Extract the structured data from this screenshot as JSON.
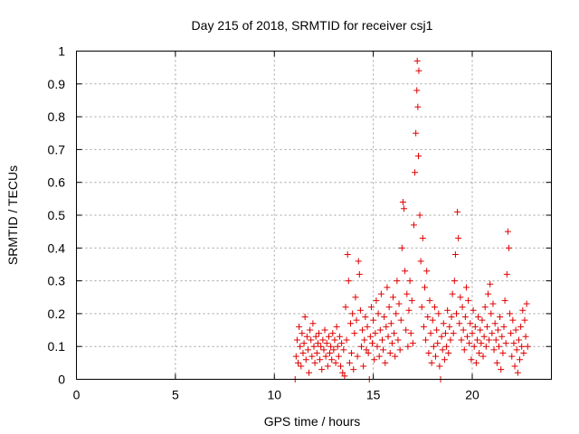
{
  "chart_data": {
    "type": "scatter",
    "title": "Day 215 of 2018, SRMTID for receiver csj1",
    "xlabel": "GPS time / hours",
    "ylabel": "SRMTID / TECUs",
    "xlim": [
      0,
      24
    ],
    "ylim": [
      0,
      1
    ],
    "x_ticks": [
      "0",
      "5",
      "10",
      "15",
      "20"
    ],
    "y_ticks": [
      "0",
      "0.1",
      "0.2",
      "0.3",
      "0.4",
      "0.5",
      "0.6",
      "0.7",
      "0.8",
      "0.9",
      "1"
    ],
    "grid": true,
    "marker": "+",
    "color": "#e00000",
    "series": [
      {
        "name": "csj1",
        "points": [
          [
            11.05,
            0.0
          ],
          [
            11.1,
            0.07
          ],
          [
            11.15,
            0.12
          ],
          [
            11.2,
            0.05
          ],
          [
            11.25,
            0.16
          ],
          [
            11.3,
            0.1
          ],
          [
            11.35,
            0.04
          ],
          [
            11.4,
            0.14
          ],
          [
            11.45,
            0.08
          ],
          [
            11.5,
            0.11
          ],
          [
            11.55,
            0.19
          ],
          [
            11.6,
            0.06
          ],
          [
            11.65,
            0.13
          ],
          [
            11.7,
            0.09
          ],
          [
            11.75,
            0.02
          ],
          [
            11.8,
            0.15
          ],
          [
            11.85,
            0.12
          ],
          [
            11.9,
            0.07
          ],
          [
            11.95,
            0.17
          ],
          [
            12.0,
            0.1
          ],
          [
            12.05,
            0.05
          ],
          [
            12.1,
            0.13
          ],
          [
            12.15,
            0.08
          ],
          [
            12.2,
            0.11
          ],
          [
            12.25,
            0.14
          ],
          [
            12.3,
            0.06
          ],
          [
            12.35,
            0.1
          ],
          [
            12.4,
            0.03
          ],
          [
            12.45,
            0.12
          ],
          [
            12.5,
            0.09
          ],
          [
            12.55,
            0.15
          ],
          [
            12.6,
            0.07
          ],
          [
            12.65,
            0.11
          ],
          [
            12.7,
            0.04
          ],
          [
            12.75,
            0.13
          ],
          [
            12.8,
            0.08
          ],
          [
            12.85,
            0.1
          ],
          [
            12.9,
            0.06
          ],
          [
            12.95,
            0.14
          ],
          [
            13.0,
            0.09
          ],
          [
            13.05,
            0.12
          ],
          [
            13.1,
            0.05
          ],
          [
            13.15,
            0.16
          ],
          [
            13.2,
            0.1
          ],
          [
            13.25,
            0.07
          ],
          [
            13.3,
            0.13
          ],
          [
            13.35,
            0.04
          ],
          [
            13.4,
            0.11
          ],
          [
            13.45,
            0.02
          ],
          [
            13.5,
            0.09
          ],
          [
            13.55,
            0.01
          ],
          [
            13.6,
            0.22
          ],
          [
            13.65,
            0.12
          ],
          [
            13.7,
            0.38
          ],
          [
            13.75,
            0.3
          ],
          [
            13.8,
            0.05
          ],
          [
            13.85,
            0.17
          ],
          [
            13.9,
            0.08
          ],
          [
            13.95,
            0.2
          ],
          [
            14.0,
            0.03
          ],
          [
            14.05,
            0.14
          ],
          [
            14.1,
            0.25
          ],
          [
            14.15,
            0.18
          ],
          [
            14.2,
            0.07
          ],
          [
            14.25,
            0.36
          ],
          [
            14.3,
            0.32
          ],
          [
            14.35,
            0.21
          ],
          [
            14.4,
            0.1
          ],
          [
            14.45,
            0.15
          ],
          [
            14.5,
            0.04
          ],
          [
            14.55,
            0.12
          ],
          [
            14.6,
            0.19
          ],
          [
            14.65,
            0.09
          ],
          [
            14.7,
            0.16
          ],
          [
            14.75,
            0.08
          ],
          [
            14.8,
            0.0
          ],
          [
            14.85,
            0.13
          ],
          [
            14.9,
            0.22
          ],
          [
            14.95,
            0.11
          ],
          [
            15.0,
            0.18
          ],
          [
            15.05,
            0.06
          ],
          [
            15.1,
            0.14
          ],
          [
            15.15,
            0.24
          ],
          [
            15.2,
            0.1
          ],
          [
            15.25,
            0.2
          ],
          [
            15.3,
            0.07
          ],
          [
            15.35,
            0.15
          ],
          [
            15.4,
            0.26
          ],
          [
            15.45,
            0.12
          ],
          [
            15.5,
            0.09
          ],
          [
            15.55,
            0.19
          ],
          [
            15.6,
            0.05
          ],
          [
            15.65,
            0.16
          ],
          [
            15.7,
            0.28
          ],
          [
            15.75,
            0.13
          ],
          [
            15.8,
            0.22
          ],
          [
            15.85,
            0.08
          ],
          [
            15.9,
            0.17
          ],
          [
            15.95,
            0.11
          ],
          [
            16.0,
            0.25
          ],
          [
            16.05,
            0.14
          ],
          [
            16.1,
            0.07
          ],
          [
            16.15,
            0.2
          ],
          [
            16.2,
            0.3
          ],
          [
            16.25,
            0.12
          ],
          [
            16.3,
            0.23
          ],
          [
            16.35,
            0.09
          ],
          [
            16.4,
            0.18
          ],
          [
            16.45,
            0.4
          ],
          [
            16.5,
            0.54
          ],
          [
            16.55,
            0.52
          ],
          [
            16.6,
            0.33
          ],
          [
            16.65,
            0.15
          ],
          [
            16.7,
            0.26
          ],
          [
            16.75,
            0.1
          ],
          [
            16.8,
            0.21
          ],
          [
            16.85,
            0.3
          ],
          [
            16.9,
            0.14
          ],
          [
            16.95,
            0.24
          ],
          [
            17.0,
            0.11
          ],
          [
            17.05,
            0.47
          ],
          [
            17.1,
            0.63
          ],
          [
            17.15,
            0.75
          ],
          [
            17.2,
            0.88
          ],
          [
            17.22,
            0.97
          ],
          [
            17.25,
            0.83
          ],
          [
            17.28,
            0.68
          ],
          [
            17.3,
            0.94
          ],
          [
            17.35,
            0.5
          ],
          [
            17.4,
            0.36
          ],
          [
            17.45,
            0.22
          ],
          [
            17.5,
            0.43
          ],
          [
            17.55,
            0.16
          ],
          [
            17.6,
            0.28
          ],
          [
            17.65,
            0.12
          ],
          [
            17.7,
            0.33
          ],
          [
            17.75,
            0.19
          ],
          [
            17.8,
            0.08
          ],
          [
            17.85,
            0.24
          ],
          [
            17.9,
            0.14
          ],
          [
            17.95,
            0.05
          ],
          [
            18.0,
            0.18
          ],
          [
            18.05,
            0.1
          ],
          [
            18.1,
            0.22
          ],
          [
            18.15,
            0.07
          ],
          [
            18.2,
            0.15
          ],
          [
            18.25,
            0.11
          ],
          [
            18.3,
            0.2
          ],
          [
            18.35,
            0.04
          ],
          [
            18.4,
            0.0
          ],
          [
            18.45,
            0.13
          ],
          [
            18.5,
            0.09
          ],
          [
            18.55,
            0.17
          ],
          [
            18.6,
            0.06
          ],
          [
            18.65,
            0.14
          ],
          [
            18.7,
            0.1
          ],
          [
            18.75,
            0.21
          ],
          [
            18.8,
            0.08
          ],
          [
            18.85,
            0.16
          ],
          [
            18.9,
            0.12
          ],
          [
            18.95,
            0.19
          ],
          [
            19.0,
            0.26
          ],
          [
            19.05,
            0.14
          ],
          [
            19.1,
            0.3
          ],
          [
            19.15,
            0.38
          ],
          [
            19.2,
            0.2
          ],
          [
            19.25,
            0.51
          ],
          [
            19.3,
            0.43
          ],
          [
            19.35,
            0.17
          ],
          [
            19.4,
            0.25
          ],
          [
            19.45,
            0.12
          ],
          [
            19.5,
            0.22
          ],
          [
            19.55,
            0.15
          ],
          [
            19.6,
            0.09
          ],
          [
            19.65,
            0.19
          ],
          [
            19.7,
            0.28
          ],
          [
            19.75,
            0.13
          ],
          [
            19.8,
            0.24
          ],
          [
            19.85,
            0.11
          ],
          [
            19.9,
            0.17
          ],
          [
            19.95,
            0.06
          ],
          [
            20.0,
            0.14
          ],
          [
            20.05,
            0.21
          ],
          [
            20.1,
            0.1
          ],
          [
            20.15,
            0.16
          ],
          [
            20.2,
            0.05
          ],
          [
            20.25,
            0.12
          ],
          [
            20.3,
            0.19
          ],
          [
            20.35,
            0.08
          ],
          [
            20.4,
            0.15
          ],
          [
            20.45,
            0.11
          ],
          [
            20.5,
            0.18
          ],
          [
            20.55,
            0.07
          ],
          [
            20.6,
            0.13
          ],
          [
            20.65,
            0.22
          ],
          [
            20.7,
            0.1
          ],
          [
            20.75,
            0.16
          ],
          [
            20.8,
            0.26
          ],
          [
            20.85,
            0.12
          ],
          [
            20.9,
            0.29
          ],
          [
            20.95,
            0.2
          ],
          [
            21.0,
            0.14
          ],
          [
            21.05,
            0.23
          ],
          [
            21.1,
            0.09
          ],
          [
            21.15,
            0.17
          ],
          [
            21.2,
            0.12
          ],
          [
            21.25,
            0.05
          ],
          [
            21.3,
            0.15
          ],
          [
            21.35,
            0.1
          ],
          [
            21.4,
            0.19
          ],
          [
            21.45,
            0.03
          ],
          [
            21.5,
            0.13
          ],
          [
            21.55,
            0.08
          ],
          [
            21.6,
            0.16
          ],
          [
            21.65,
            0.24
          ],
          [
            21.7,
            0.11
          ],
          [
            21.75,
            0.32
          ],
          [
            21.8,
            0.45
          ],
          [
            21.85,
            0.4
          ],
          [
            21.9,
            0.2
          ],
          [
            21.95,
            0.14
          ],
          [
            22.0,
            0.07
          ],
          [
            22.05,
            0.18
          ],
          [
            22.1,
            0.11
          ],
          [
            22.15,
            0.04
          ],
          [
            22.2,
            0.15
          ],
          [
            22.25,
            0.09
          ],
          [
            22.3,
            0.02
          ],
          [
            22.35,
            0.12
          ],
          [
            22.4,
            0.06
          ],
          [
            22.45,
            0.16
          ],
          [
            22.5,
            0.1
          ],
          [
            22.55,
            0.21
          ],
          [
            22.6,
            0.08
          ],
          [
            22.65,
            0.18
          ],
          [
            22.7,
            0.13
          ],
          [
            22.75,
            0.23
          ],
          [
            22.8,
            0.1
          ]
        ]
      }
    ]
  }
}
